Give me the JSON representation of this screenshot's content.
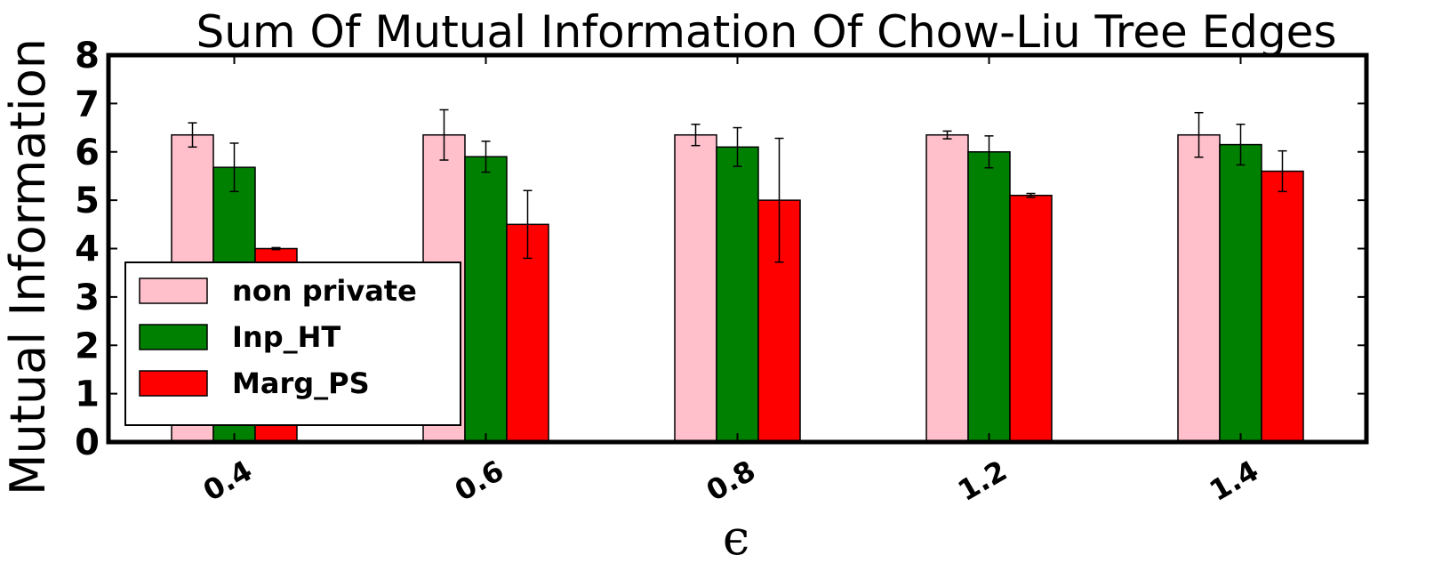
{
  "chart_data": {
    "type": "bar",
    "title": "Sum Of Mutual Information Of Chow-Liu Tree Edges",
    "xlabel": "ϵ",
    "ylabel": "Mutual Information",
    "categories": [
      "0.4",
      "0.6",
      "0.8",
      "1.2",
      "1.4"
    ],
    "ylim": [
      0,
      8
    ],
    "yticks": [
      "0",
      "1",
      "2",
      "3",
      "4",
      "5",
      "6",
      "7",
      "8"
    ],
    "grid": false,
    "legend_position": "lower-left",
    "series": [
      {
        "name": "non private",
        "color": "#ffc0cb",
        "values": [
          6.35,
          6.35,
          6.35,
          6.35,
          6.35
        ],
        "errors": [
          0.25,
          0.52,
          0.22,
          0.08,
          0.46
        ]
      },
      {
        "name": "Inp_HT",
        "color": "#008000",
        "values": [
          5.68,
          5.9,
          6.1,
          6.0,
          6.15
        ],
        "errors": [
          0.5,
          0.32,
          0.4,
          0.33,
          0.42
        ]
      },
      {
        "name": "Marg_PS",
        "color": "#ff0000",
        "values": [
          4.0,
          4.5,
          5.0,
          5.1,
          5.6
        ],
        "errors": [
          0.02,
          0.7,
          1.28,
          0.04,
          0.42
        ]
      }
    ]
  }
}
